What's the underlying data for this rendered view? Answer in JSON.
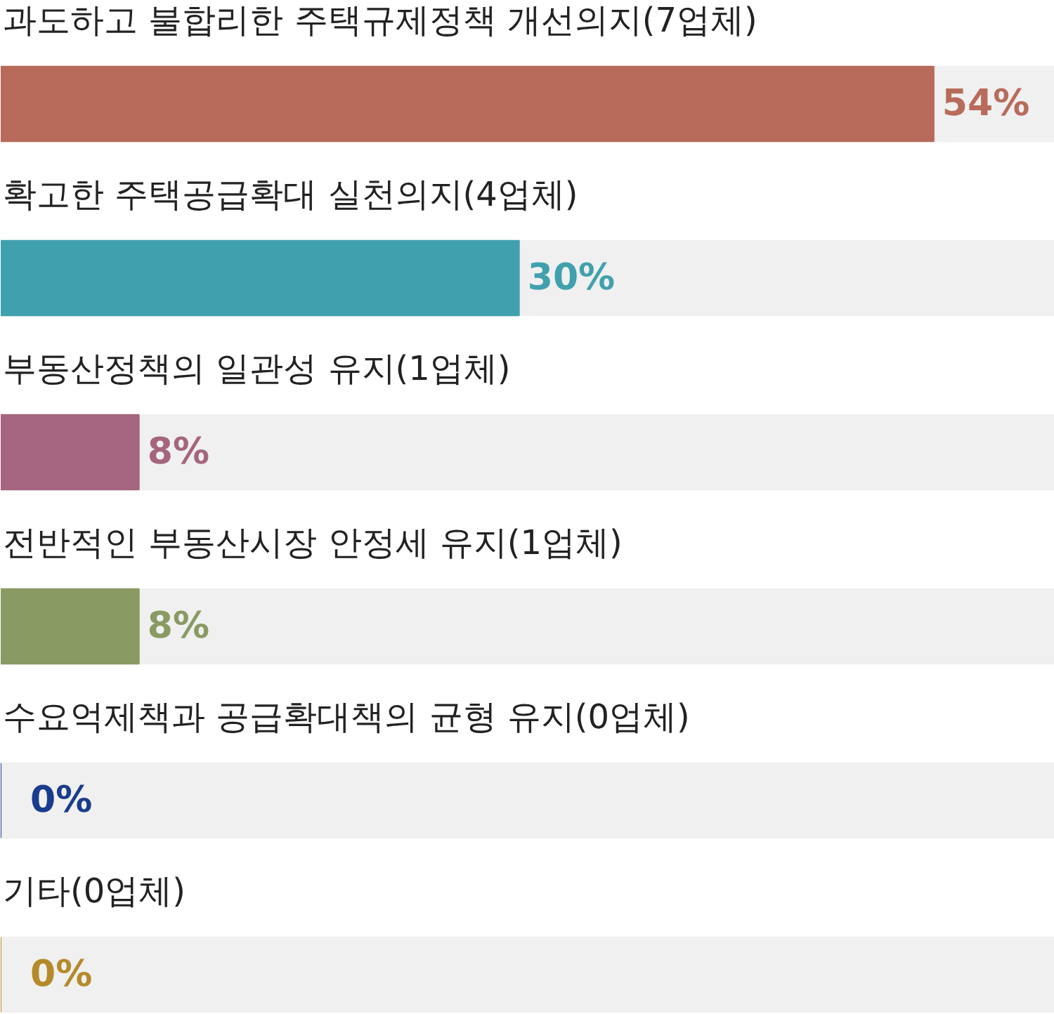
{
  "chart_data": {
    "type": "bar",
    "orientation": "horizontal",
    "categories": [
      "과도하고 불합리한 주택규제정책 개선의지(7업체)",
      "확고한 주택공급확대 실천의지(4업체)",
      "부동산정책의 일관성 유지(1업체)",
      "전반적인 부동산시장 안정세 유지(1업체)",
      "수요억제책과 공급확대책의 균형 유지(0업체)",
      "기타(0업체)"
    ],
    "values": [
      54,
      30,
      8,
      8,
      0,
      0
    ],
    "colors": [
      "#b86b5a",
      "#41a0ad",
      "#a5657e",
      "#8a9a63",
      "#1a3c8c",
      "#b58a2a"
    ],
    "value_labels": [
      "54%",
      "30%",
      "8%",
      "8%",
      "0%",
      "0%"
    ],
    "xlim": [
      0,
      61
    ],
    "tick_labels": false,
    "grid": false
  }
}
